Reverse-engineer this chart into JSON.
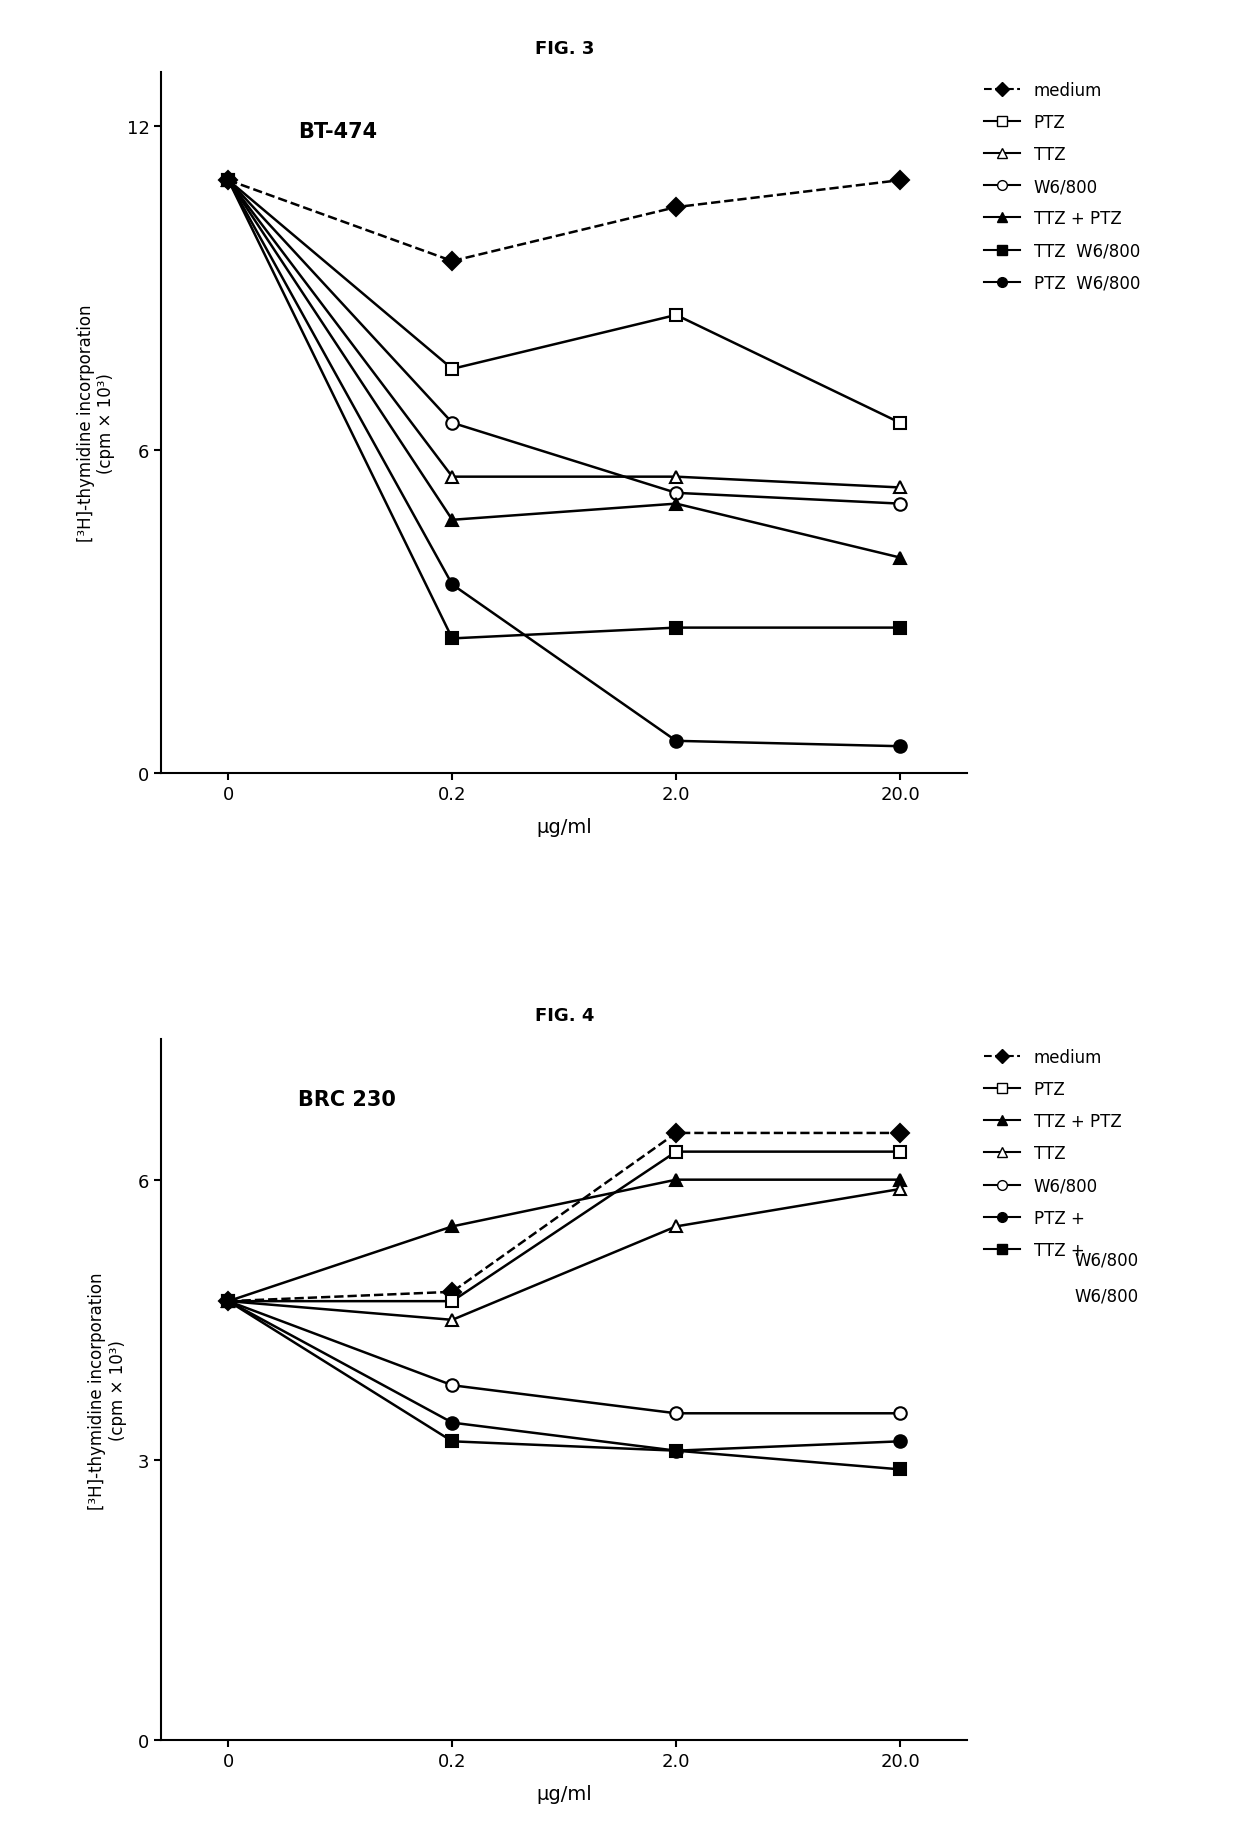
{
  "fig3": {
    "title": "FIG. 3",
    "subtitle": "BT-474",
    "xlabel": "μg/ml",
    "x_labels": [
      "0",
      "0.2",
      "2.0",
      "20.0"
    ],
    "ylim": [
      0,
      13
    ],
    "yticks": [
      0,
      6,
      12
    ],
    "series": [
      {
        "label": "medium",
        "y": [
          11.0,
          9.5,
          10.5,
          11.0
        ],
        "marker": "D",
        "filled": true,
        "linestyle": "--",
        "markersize": 9
      },
      {
        "label": "PTZ",
        "y": [
          11.0,
          7.5,
          8.5,
          6.5
        ],
        "marker": "s",
        "filled": false,
        "linestyle": "-",
        "markersize": 9
      },
      {
        "label": "TTZ",
        "y": [
          11.0,
          5.5,
          5.5,
          5.3
        ],
        "marker": "^",
        "filled": false,
        "linestyle": "-",
        "markersize": 9
      },
      {
        "label": "W6/800",
        "y": [
          11.0,
          6.5,
          5.2,
          5.0
        ],
        "marker": "o",
        "filled": false,
        "linestyle": "-",
        "markersize": 9
      },
      {
        "label": "TTZ + PTZ",
        "y": [
          11.0,
          4.7,
          5.0,
          4.0
        ],
        "marker": "^",
        "filled": true,
        "linestyle": "-",
        "markersize": 9
      },
      {
        "label": "TTZ  W6/800",
        "y": [
          11.0,
          2.5,
          2.7,
          2.7
        ],
        "marker": "s",
        "filled": true,
        "linestyle": "-",
        "markersize": 9
      },
      {
        "label": "PTZ  W6/800",
        "y": [
          11.0,
          3.5,
          0.6,
          0.5
        ],
        "marker": "o",
        "filled": true,
        "linestyle": "-",
        "markersize": 9
      }
    ],
    "legend_labels": [
      [
        "medium",
        "--",
        "D",
        true
      ],
      [
        "PTZ",
        "-",
        "s",
        false
      ],
      [
        "TTZ",
        "-",
        "^",
        false
      ],
      [
        "W6/800",
        "-",
        "o",
        false
      ],
      [
        "TTZ + PTZ",
        "-",
        "^",
        true
      ],
      [
        "TTZ  W6/800",
        "-",
        "s",
        true
      ],
      [
        "PTZ  W6/800",
        "-",
        "o",
        true
      ]
    ]
  },
  "fig4": {
    "title": "FIG. 4",
    "subtitle": "BRC 230",
    "xlabel": "μg/ml",
    "x_labels": [
      "0",
      "0.2",
      "2.0",
      "20.0"
    ],
    "ylim": [
      0,
      7.5
    ],
    "yticks": [
      0,
      3,
      6
    ],
    "series": [
      {
        "label": "medium",
        "y": [
          4.7,
          4.8,
          6.5,
          6.5
        ],
        "marker": "D",
        "filled": true,
        "linestyle": "--",
        "markersize": 9
      },
      {
        "label": "PTZ",
        "y": [
          4.7,
          4.7,
          6.3,
          6.3
        ],
        "marker": "s",
        "filled": false,
        "linestyle": "-",
        "markersize": 9
      },
      {
        "label": "TTZ + PTZ",
        "y": [
          4.7,
          5.5,
          6.0,
          6.0
        ],
        "marker": "^",
        "filled": true,
        "linestyle": "-",
        "markersize": 9
      },
      {
        "label": "TTZ",
        "y": [
          4.7,
          4.5,
          5.5,
          5.9
        ],
        "marker": "^",
        "filled": false,
        "linestyle": "-",
        "markersize": 9
      },
      {
        "label": "W6/800",
        "y": [
          4.7,
          3.8,
          3.5,
          3.5
        ],
        "marker": "o",
        "filled": false,
        "linestyle": "-",
        "markersize": 9
      },
      {
        "label": "PTZ +",
        "y": [
          4.7,
          3.4,
          3.1,
          3.2
        ],
        "marker": "o",
        "filled": true,
        "linestyle": "-",
        "markersize": 9
      },
      {
        "label": "TTZ +",
        "y": [
          4.7,
          3.2,
          3.1,
          2.9
        ],
        "marker": "s",
        "filled": true,
        "linestyle": "-",
        "markersize": 9
      }
    ],
    "legend_extra": [
      "W6/800",
      "W6/800"
    ]
  },
  "background_color": "#ffffff",
  "line_color": "#000000",
  "ylabel": "[3H]-thymidine incorporation\n(cpm × 10³)"
}
